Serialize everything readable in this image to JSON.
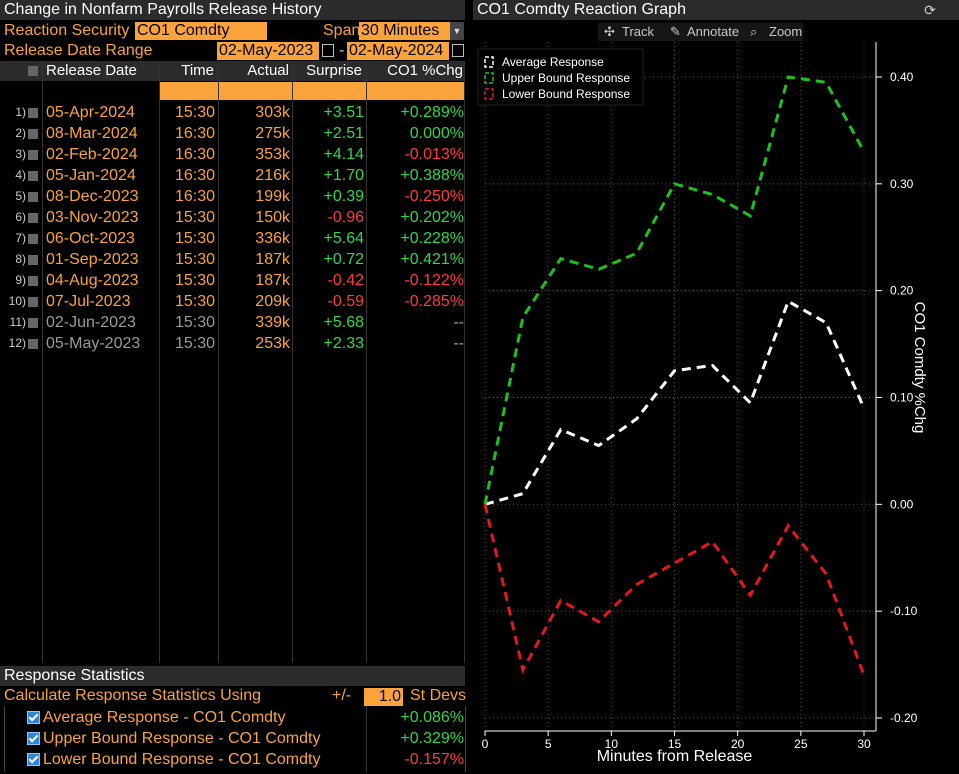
{
  "left_panel": {
    "title": "Change in Nonfarm Payrolls Release History",
    "reaction_label": "Reaction Security",
    "reaction_value": "CO1 Comdty",
    "span_label": "Span",
    "span_value": "30 Minutes",
    "range_label": "Release Date Range",
    "range_start": "02-May-2023",
    "range_sep": "-",
    "range_end": "02-May-2024",
    "columns": [
      "Release Date",
      "Time",
      "Actual",
      "Surprise",
      "CO1 %Chg"
    ],
    "rows": [
      {
        "n": "1)",
        "date": "05-Apr-2024",
        "time": "15:30",
        "actual": "303k",
        "surprise": "+3.51",
        "chg": "+0.289%",
        "chg_color": "green"
      },
      {
        "n": "2)",
        "date": "08-Mar-2024",
        "time": "16:30",
        "actual": "275k",
        "surprise": "+2.51",
        "chg": "0.000%",
        "chg_color": "green"
      },
      {
        "n": "3)",
        "date": "02-Feb-2024",
        "time": "16:30",
        "actual": "353k",
        "surprise": "+4.14",
        "chg": "-0.013%",
        "chg_color": "red"
      },
      {
        "n": "4)",
        "date": "05-Jan-2024",
        "time": "16:30",
        "actual": "216k",
        "surprise": "+1.70",
        "chg": "+0.388%",
        "chg_color": "green"
      },
      {
        "n": "5)",
        "date": "08-Dec-2023",
        "time": "16:30",
        "actual": "199k",
        "surprise": "+0.39",
        "chg": "-0.250%",
        "chg_color": "red"
      },
      {
        "n": "6)",
        "date": "03-Nov-2023",
        "time": "15:30",
        "actual": "150k",
        "surprise": "-0.96",
        "chg": "+0.202%",
        "chg_color": "green"
      },
      {
        "n": "7)",
        "date": "06-Oct-2023",
        "time": "15:30",
        "actual": "336k",
        "surprise": "+5.64",
        "chg": "+0.228%",
        "chg_color": "green"
      },
      {
        "n": "8)",
        "date": "01-Sep-2023",
        "time": "15:30",
        "actual": "187k",
        "surprise": "+0.72",
        "chg": "+0.421%",
        "chg_color": "green"
      },
      {
        "n": "9)",
        "date": "04-Aug-2023",
        "time": "15:30",
        "actual": "187k",
        "surprise": "-0.42",
        "chg": "-0.122%",
        "chg_color": "red"
      },
      {
        "n": "10)",
        "date": "07-Jul-2023",
        "time": "15:30",
        "actual": "209k",
        "surprise": "-0.59",
        "chg": "-0.285%",
        "chg_color": "red"
      },
      {
        "n": "11)",
        "date": "02-Jun-2023",
        "time": "15:30",
        "actual": "339k",
        "surprise": "+5.68",
        "chg": "--",
        "chg_color": "gray",
        "dim": true
      },
      {
        "n": "12)",
        "date": "05-May-2023",
        "time": "15:30",
        "actual": "253k",
        "surprise": "+2.33",
        "chg": "--",
        "chg_color": "gray",
        "dim": true
      }
    ],
    "stats_title": "Response Statistics",
    "stats_calc_label": "Calculate Response Statistics Using",
    "stats_pm": "+/-",
    "stats_stdev": "1.0",
    "stats_stdev_label": "St Devs",
    "stats": [
      {
        "label": "Average Response - CO1 Comdty",
        "value": "+0.086%",
        "color": "green"
      },
      {
        "label": "Upper Bound Response - CO1 Comdty",
        "value": "+0.329%",
        "color": "green"
      },
      {
        "label": "Lower Bound Response - CO1 Comdty",
        "value": "-0.157%",
        "color": "red"
      }
    ]
  },
  "right_panel": {
    "title": "CO1 Comdty Reaction Graph",
    "tools": [
      "Track",
      "Annotate",
      "Zoom"
    ]
  },
  "colors": {
    "accent": "#f9a33a",
    "positive": "#31d64d",
    "negative": "#ff3b3b"
  },
  "chart_data": {
    "type": "line",
    "xlabel": "Minutes from Release",
    "ylabel": "CO1 Comdty %Chg",
    "xlim": [
      0,
      30
    ],
    "ylim": [
      -0.2,
      0.4
    ],
    "xticks": [
      0,
      5,
      10,
      15,
      20,
      25,
      30
    ],
    "yticks": [
      "0.40",
      "0.30",
      "0.20",
      "0.10",
      "0.00",
      "-0.10",
      "-0.20"
    ],
    "legend_position": "top-left",
    "series": [
      {
        "name": "Average Response",
        "color": "#ffffff",
        "x": [
          0,
          3,
          6,
          9,
          12,
          15,
          18,
          21,
          24,
          27,
          30
        ],
        "y": [
          0.0,
          0.01,
          0.07,
          0.055,
          0.08,
          0.125,
          0.13,
          0.095,
          0.19,
          0.17,
          0.09
        ]
      },
      {
        "name": "Upper Bound Response",
        "color": "#1ec01e",
        "x": [
          0,
          3,
          6,
          9,
          12,
          15,
          18,
          21,
          24,
          27,
          30
        ],
        "y": [
          0.0,
          0.175,
          0.23,
          0.22,
          0.235,
          0.3,
          0.29,
          0.27,
          0.4,
          0.395,
          0.33
        ]
      },
      {
        "name": "Lower Bound Response",
        "color": "#e01a1a",
        "x": [
          0,
          3,
          6,
          9,
          12,
          15,
          18,
          21,
          24,
          27,
          30
        ],
        "y": [
          0.0,
          -0.155,
          -0.09,
          -0.11,
          -0.075,
          -0.055,
          -0.035,
          -0.085,
          -0.02,
          -0.065,
          -0.16
        ]
      }
    ]
  }
}
